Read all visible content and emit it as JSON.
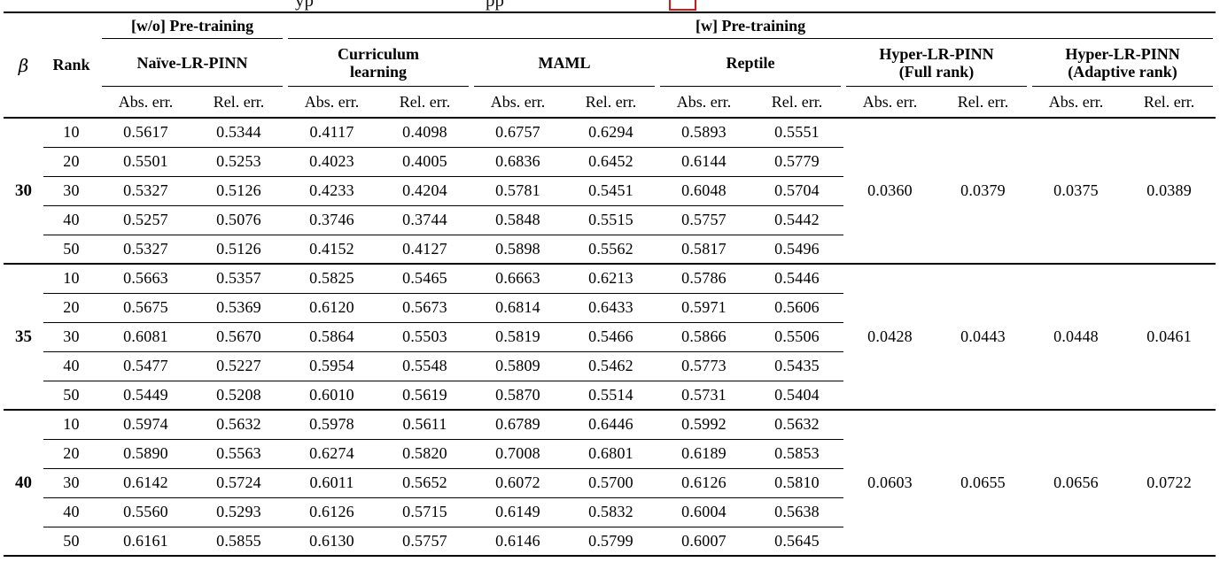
{
  "caption_fragments": {
    "left": "yp",
    "right": "pp"
  },
  "accent_red": "#e31212",
  "table": {
    "beta_symbol": "β",
    "rank_label": "Rank",
    "groups": {
      "without": "[w/o] Pre-training",
      "with": "[w] Pre-training"
    },
    "methods": [
      {
        "name": "Naïve-LR-PINN",
        "sub": ""
      },
      {
        "name": "Curriculum",
        "sub": "learning"
      },
      {
        "name": "MAML",
        "sub": ""
      },
      {
        "name": "Reptile",
        "sub": ""
      },
      {
        "name": "Hyper-LR-PINN",
        "sub": "(Full rank)"
      },
      {
        "name": "Hyper-LR-PINN",
        "sub": "(Adaptive rank)"
      }
    ],
    "subheaders": [
      "Abs. err.",
      "Rel. err."
    ],
    "blocks": [
      {
        "beta": "30",
        "rows": [
          {
            "rank": "10",
            "values": [
              "0.5617",
              "0.5344",
              "0.4117",
              "0.4098",
              "0.6757",
              "0.6294",
              "0.5893",
              "0.5551"
            ]
          },
          {
            "rank": "20",
            "values": [
              "0.5501",
              "0.5253",
              "0.4023",
              "0.4005",
              "0.6836",
              "0.6452",
              "0.6144",
              "0.5779"
            ]
          },
          {
            "rank": "30",
            "values": [
              "0.5327",
              "0.5126",
              "0.4233",
              "0.4204",
              "0.5781",
              "0.5451",
              "0.6048",
              "0.5704"
            ]
          },
          {
            "rank": "40",
            "values": [
              "0.5257",
              "0.5076",
              "0.3746",
              "0.3744",
              "0.5848",
              "0.5515",
              "0.5757",
              "0.5442"
            ]
          },
          {
            "rank": "50",
            "values": [
              "0.5327",
              "0.5126",
              "0.4152",
              "0.4127",
              "0.5898",
              "0.5562",
              "0.5817",
              "0.5496"
            ]
          }
        ],
        "hyper_full": [
          "0.0360",
          "0.0379"
        ],
        "hyper_adaptive": [
          "0.0375",
          "0.0389"
        ]
      },
      {
        "beta": "35",
        "rows": [
          {
            "rank": "10",
            "values": [
              "0.5663",
              "0.5357",
              "0.5825",
              "0.5465",
              "0.6663",
              "0.6213",
              "0.5786",
              "0.5446"
            ]
          },
          {
            "rank": "20",
            "values": [
              "0.5675",
              "0.5369",
              "0.6120",
              "0.5673",
              "0.6814",
              "0.6433",
              "0.5971",
              "0.5606"
            ]
          },
          {
            "rank": "30",
            "values": [
              "0.6081",
              "0.5670",
              "0.5864",
              "0.5503",
              "0.5819",
              "0.5466",
              "0.5866",
              "0.5506"
            ]
          },
          {
            "rank": "40",
            "values": [
              "0.5477",
              "0.5227",
              "0.5954",
              "0.5548",
              "0.5809",
              "0.5462",
              "0.5773",
              "0.5435"
            ]
          },
          {
            "rank": "50",
            "values": [
              "0.5449",
              "0.5208",
              "0.6010",
              "0.5619",
              "0.5870",
              "0.5514",
              "0.5731",
              "0.5404"
            ]
          }
        ],
        "hyper_full": [
          "0.0428",
          "0.0443"
        ],
        "hyper_adaptive": [
          "0.0448",
          "0.0461"
        ]
      },
      {
        "beta": "40",
        "rows": [
          {
            "rank": "10",
            "values": [
              "0.5974",
              "0.5632",
              "0.5978",
              "0.5611",
              "0.6789",
              "0.6446",
              "0.5992",
              "0.5632"
            ]
          },
          {
            "rank": "20",
            "values": [
              "0.5890",
              "0.5563",
              "0.6274",
              "0.5820",
              "0.7008",
              "0.6801",
              "0.6189",
              "0.5853"
            ]
          },
          {
            "rank": "30",
            "values": [
              "0.6142",
              "0.5724",
              "0.6011",
              "0.5652",
              "0.6072",
              "0.5700",
              "0.6126",
              "0.5810"
            ]
          },
          {
            "rank": "40",
            "values": [
              "0.5560",
              "0.5293",
              "0.6126",
              "0.5715",
              "0.6149",
              "0.5832",
              "0.6004",
              "0.5638"
            ]
          },
          {
            "rank": "50",
            "values": [
              "0.6161",
              "0.5855",
              "0.6130",
              "0.5757",
              "0.6146",
              "0.5799",
              "0.6007",
              "0.5645"
            ]
          }
        ],
        "hyper_full": [
          "0.0603",
          "0.0655"
        ],
        "hyper_adaptive": [
          "0.0656",
          "0.0722"
        ]
      }
    ]
  }
}
